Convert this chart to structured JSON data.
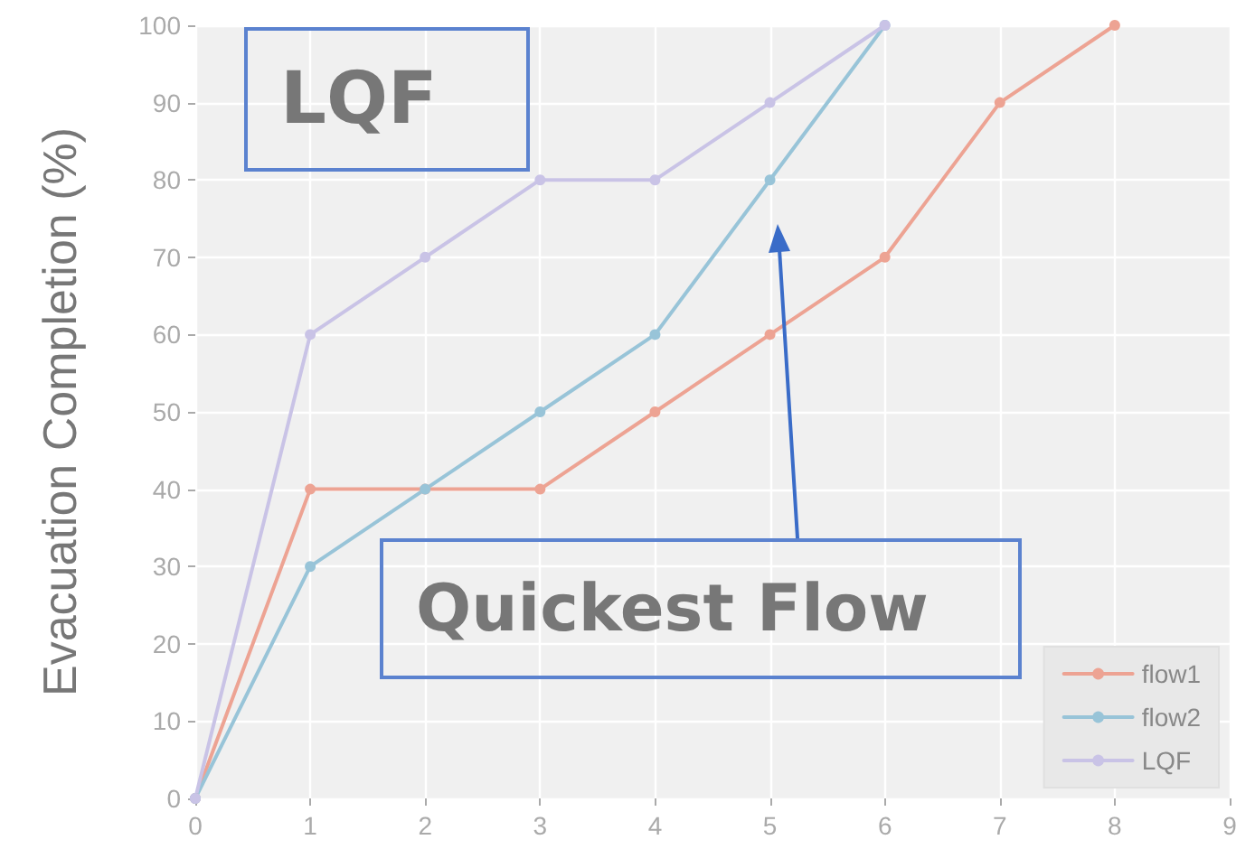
{
  "chart_data": {
    "type": "line",
    "ylabel": "Evacuation Completion (%)",
    "x": [
      0,
      1,
      2,
      3,
      4,
      5,
      6,
      7,
      8
    ],
    "series": [
      {
        "name": "flow1",
        "color": "#eda393",
        "values": [
          0,
          40,
          40,
          40,
          50,
          60,
          70,
          90,
          100
        ]
      },
      {
        "name": "flow2",
        "color": "#98c4d8",
        "x": [
          0,
          1,
          2,
          3,
          4,
          5,
          6
        ],
        "values": [
          0,
          30,
          40,
          50,
          60,
          80,
          100
        ]
      },
      {
        "name": "LQF",
        "color": "#c9c3e6",
        "x": [
          0,
          1,
          2,
          3,
          4,
          5,
          6
        ],
        "values": [
          0,
          60,
          70,
          80,
          80,
          90,
          100
        ]
      }
    ],
    "xlim": [
      0,
      9
    ],
    "xticks": [
      0,
      1,
      2,
      3,
      4,
      5,
      6,
      7,
      8,
      9
    ],
    "ylim": [
      0,
      100
    ],
    "yticks": [
      0,
      10,
      20,
      30,
      40,
      50,
      60,
      70,
      80,
      90,
      100
    ],
    "grid": true,
    "legend": "bottom right",
    "marker": "circle",
    "line_style": "solid",
    "annotations": [
      "LQF",
      "Quickest Flow"
    ]
  }
}
